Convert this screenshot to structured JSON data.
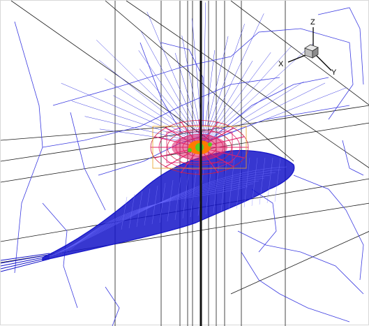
{
  "viewer": {
    "background": "#ffffff",
    "colors": {
      "grid": "#1a1a1a",
      "wireframe": "#3a3ae0",
      "fuselage": "#1414c8",
      "rotor_cage": "#e0206a",
      "rotor_disc": "#ff7a00",
      "hub": "#55cc22",
      "mast": "#111111"
    }
  },
  "axis_triad": {
    "icon": "orientation-cube-icon",
    "x_label": "X",
    "y_label": "Y",
    "z_label": "Z"
  }
}
